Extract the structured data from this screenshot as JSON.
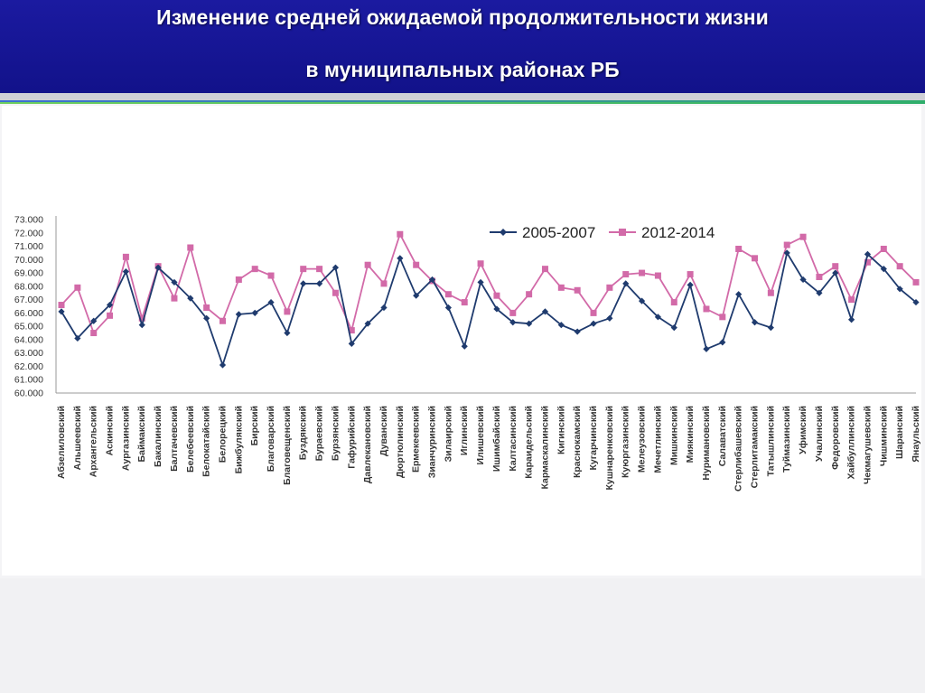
{
  "header": {
    "title_line1": "Изменение средней ожидаемой продолжительности жизни",
    "title_line2": "в муниципальных районах РБ"
  },
  "colors": {
    "header_bg": "#15158f",
    "series_2005": "#1f3b6e",
    "series_2012": "#d26aa8"
  },
  "chart_data": {
    "type": "line",
    "title": "",
    "xlabel": "",
    "ylabel": "",
    "ylim": [
      60,
      73
    ],
    "yticks": [
      "60.000",
      "61.000",
      "62.000",
      "63.000",
      "64.000",
      "65.000",
      "66.000",
      "67.000",
      "68.000",
      "69.000",
      "70.000",
      "71.000",
      "72.000",
      "73.000"
    ],
    "legend_position": "top",
    "grid": false,
    "categories": [
      "Абзелиловский",
      "Альшеевский",
      "Архангельский",
      "Аскинский",
      "Аургазинский",
      "Баймакский",
      "Бакалинский",
      "Балтачевский",
      "Белебеевский",
      "Белокатайский",
      "Белорецкий",
      "Бижбулякский",
      "Бирский",
      "Благоварский",
      "Благовещенский",
      "Буздякский",
      "Бураевский",
      "Бурзянский",
      "Гафурийский",
      "Давлекановский",
      "Дуванский",
      "Дюртюлинский",
      "Ермекеевский",
      "Зианчуринский",
      "Зилаирский",
      "Иглинский",
      "Илишевский",
      "Ишимбайский",
      "Калтасинский",
      "Караидельский",
      "Кармаскалинский",
      "Кигинский",
      "Краснокамский",
      "Кугарчинский",
      "Кушнаренковский",
      "Куюргазинский",
      "Мелеузовский",
      "Мечетлинский",
      "Мишкинский",
      "Миякинский",
      "Нуримановский",
      "Салаватский",
      "Стерлибашевский",
      "Стерлитамакский",
      "Татышлинский",
      "Туймазинский",
      "Уфимский",
      "Учалинский",
      "Федоровский",
      "Хайбуллинский",
      "Чекмагушевский",
      "Чишминский",
      "Шаранский",
      "Янаульский"
    ],
    "series": [
      {
        "name": "2005-2007",
        "values": [
          66.1,
          64.1,
          65.4,
          66.6,
          69.1,
          65.1,
          69.4,
          68.3,
          67.1,
          65.6,
          62.1,
          65.9,
          66.0,
          66.8,
          64.5,
          68.2,
          68.2,
          69.4,
          63.7,
          65.2,
          66.4,
          70.1,
          67.3,
          68.5,
          66.4,
          63.5,
          68.3,
          66.3,
          65.3,
          65.2,
          66.1,
          65.1,
          64.6,
          65.2,
          65.6,
          68.2,
          66.9,
          65.7,
          64.9,
          68.1,
          63.3,
          63.8,
          67.4,
          65.3,
          64.9,
          70.5,
          68.5,
          67.5,
          69.0,
          65.5,
          70.4,
          69.3,
          67.8,
          66.8
        ]
      },
      {
        "name": "2012-2014",
        "values": [
          66.6,
          67.9,
          64.5,
          65.8,
          70.2,
          65.6,
          69.5,
          67.1,
          70.9,
          66.4,
          65.4,
          68.5,
          69.3,
          68.8,
          66.1,
          69.3,
          69.3,
          67.5,
          64.7,
          69.6,
          68.2,
          71.9,
          69.6,
          68.4,
          67.4,
          66.8,
          69.7,
          67.3,
          66.0,
          67.4,
          69.3,
          67.9,
          67.7,
          66.0,
          67.9,
          68.9,
          69.0,
          68.8,
          66.8,
          68.9,
          66.3,
          65.7,
          70.8,
          70.1,
          67.5,
          71.1,
          71.7,
          68.7,
          69.5,
          67.0,
          69.8,
          70.8,
          69.5,
          68.3
        ]
      }
    ]
  }
}
